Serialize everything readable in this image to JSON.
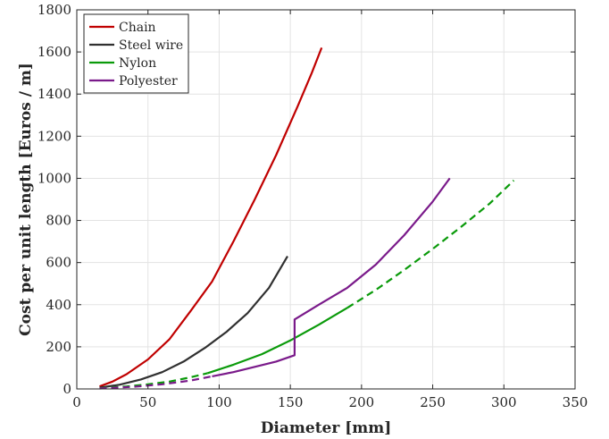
{
  "chart_data": {
    "type": "line",
    "title": "",
    "xlabel": "Diameter [mm]",
    "ylabel": "Cost per unit length [Euros / m]",
    "xlim": [
      0,
      350
    ],
    "ylim": [
      0,
      1800
    ],
    "xticks": [
      0,
      50,
      100,
      150,
      200,
      250,
      300,
      350
    ],
    "yticks": [
      0,
      200,
      400,
      600,
      800,
      1000,
      1200,
      1400,
      1600,
      1800
    ],
    "grid": true,
    "legend_position": "top-left",
    "series": [
      {
        "name": "Chain",
        "color": "#c00000",
        "segments": [
          {
            "style": "solid",
            "points": [
              [
                16,
                12
              ],
              [
                25,
                35
              ],
              [
                35,
                70
              ],
              [
                50,
                140
              ],
              [
                65,
                235
              ],
              [
                80,
                370
              ],
              [
                95,
                510
              ],
              [
                110,
                700
              ],
              [
                125,
                900
              ],
              [
                140,
                1110
              ],
              [
                155,
                1340
              ],
              [
                165,
                1500
              ],
              [
                172,
                1620
              ]
            ]
          }
        ]
      },
      {
        "name": "Steel wire",
        "color": "#303030",
        "segments": [
          {
            "style": "solid",
            "points": [
              [
                16,
                6
              ],
              [
                30,
                20
              ],
              [
                45,
                45
              ],
              [
                60,
                80
              ],
              [
                75,
                130
              ],
              [
                90,
                195
              ],
              [
                105,
                270
              ],
              [
                120,
                360
              ],
              [
                135,
                480
              ],
              [
                148,
                630
              ]
            ]
          }
        ]
      },
      {
        "name": "Nylon",
        "color": "#0a9a0a",
        "segments": [
          {
            "style": "dashed",
            "points": [
              [
                16,
                3
              ],
              [
                35,
                12
              ],
              [
                50,
                22
              ],
              [
                65,
                35
              ],
              [
                80,
                55
              ],
              [
                92,
                75
              ]
            ]
          },
          {
            "style": "solid",
            "points": [
              [
                92,
                75
              ],
              [
                110,
                115
              ],
              [
                130,
                165
              ],
              [
                150,
                230
              ],
              [
                170,
                305
              ],
              [
                190,
                385
              ]
            ]
          },
          {
            "style": "dashed",
            "points": [
              [
                190,
                385
              ],
              [
                210,
                470
              ],
              [
                230,
                565
              ],
              [
                250,
                665
              ],
              [
                270,
                770
              ],
              [
                290,
                880
              ],
              [
                307,
                990
              ]
            ]
          }
        ]
      },
      {
        "name": "Polyester",
        "color": "#7a1a8a",
        "segments": [
          {
            "style": "dashed",
            "points": [
              [
                16,
                2
              ],
              [
                40,
                10
              ],
              [
                60,
                22
              ],
              [
                80,
                40
              ],
              [
                95,
                60
              ]
            ]
          },
          {
            "style": "solid",
            "points": [
              [
                95,
                60
              ],
              [
                110,
                80
              ],
              [
                125,
                105
              ],
              [
                140,
                130
              ],
              [
                153,
                160
              ],
              [
                153,
                330
              ],
              [
                170,
                400
              ],
              [
                190,
                480
              ],
              [
                210,
                590
              ],
              [
                230,
                730
              ],
              [
                250,
                890
              ],
              [
                262,
                1000
              ]
            ]
          }
        ]
      }
    ]
  }
}
